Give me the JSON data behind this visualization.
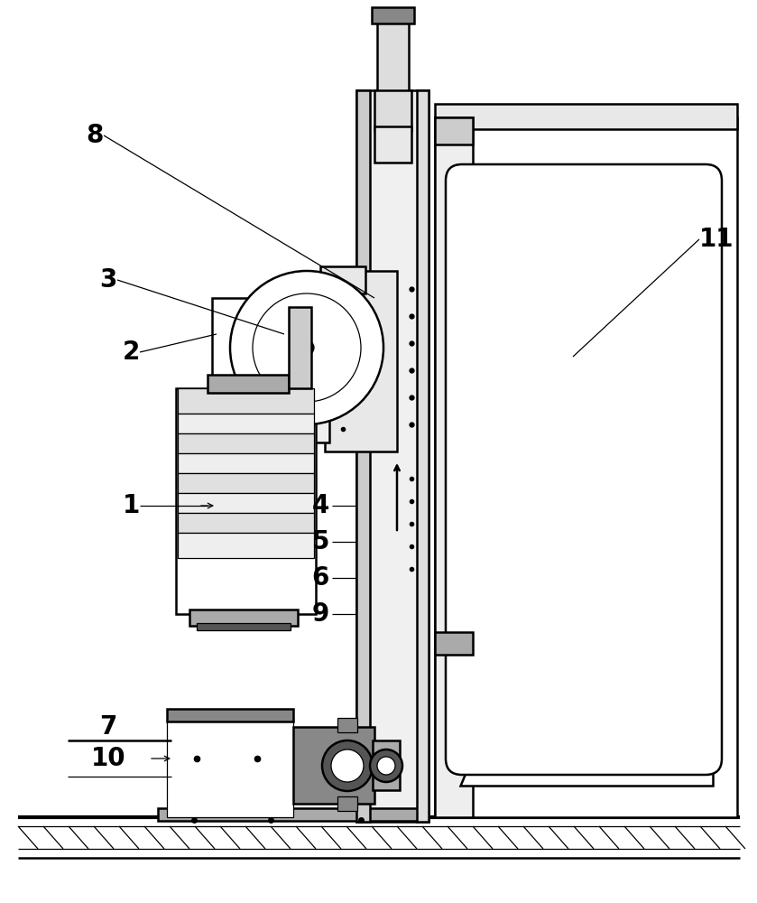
{
  "bg": "#ffffff",
  "lc": "#000000",
  "fw": 8.39,
  "fh": 10.0,
  "dpi": 100,
  "lfs": 20,
  "gray1": "#cccccc",
  "gray2": "#aaaaaa",
  "gray3": "#888888",
  "gray4": "#555555",
  "gray5": "#e8e8e8",
  "gray6": "#dddddd",
  "gray7": "#f0f0f0",
  "gray8": "#eeeeee"
}
